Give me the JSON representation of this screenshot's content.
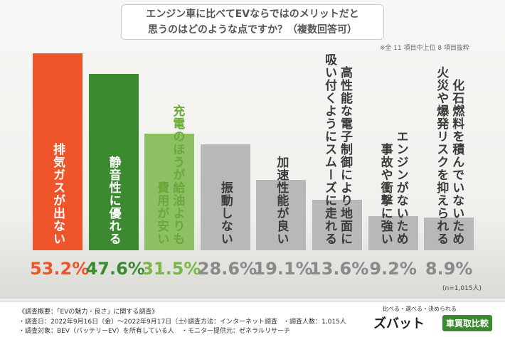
{
  "chart_data": {
    "type": "bar",
    "title": "エンジン車に比べてEVならではのメリットだと\n思うのはどのような点ですか？（複数回答可）",
    "note": "※全 11 項目中上位 8 項目抜粋",
    "sample_size": "(n=1,015人)",
    "categories": [
      "排気ガスが出ない",
      "静音性に優れる",
      "充電のほうが給油よりも\n費用が安い",
      "振動しない",
      "加速性能が良い",
      "高性能な電子制御により地面に\n吸い付くようにスムーズに走れる",
      "エンジンがないため\n事故や衝撃に強い",
      "化石燃料を積んでいないため\n火災や爆発リスクを抑えられる"
    ],
    "values": [
      53.2,
      47.6,
      31.5,
      28.6,
      19.1,
      13.6,
      9.2,
      8.9
    ],
    "value_labels": [
      "53.2%",
      "47.6%",
      "31.5%",
      "28.6%",
      "19.1%",
      "13.6%",
      "9.2%",
      "8.9%"
    ],
    "colors": [
      "#f0542a",
      "#3b8a2f",
      "#8cc063",
      "#b8b8b8",
      "#b8b8b8",
      "#b8b8b8",
      "#b8b8b8",
      "#b8b8b8"
    ],
    "category_colors": [
      "#ffffff",
      "#ffffff",
      "#6aa83a",
      "#3a3a3a",
      "#3a3a3a",
      "#3a3a3a",
      "#3a3a3a",
      "#3a3a3a"
    ],
    "value_label_colors": [
      "#f0542a",
      "#3b8a2f",
      "#7ab648",
      "#8a8a8a",
      "#8a8a8a",
      "#8a8a8a",
      "#8a8a8a",
      "#8a8a8a"
    ]
  },
  "footer": {
    "heading": "《調査概要：「EVの魅力・良さ」に関する調査》",
    "items": [
      "・調査日：2022年9月16日（金）～2022年9月17日（土）",
      "・調査対象：BEV（バッテリーEV）を所有している人",
      "・調査方法：インターネット調査",
      "・モニター提供元：ゼネラルリサーチ",
      "・調査人数：1,015人"
    ],
    "logo": {
      "tagline": "比べる・選べる・決められる",
      "name": "ズバット",
      "badge": "車買取比較"
    }
  }
}
